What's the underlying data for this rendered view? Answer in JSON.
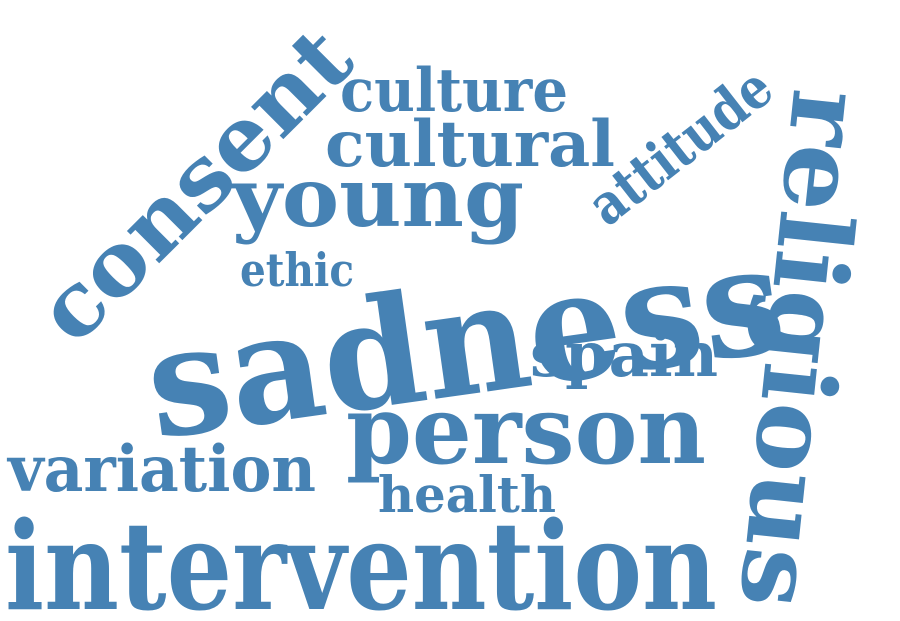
{
  "colors": {
    "word": "#4682b4",
    "background": "#ffffff"
  },
  "words": [
    {
      "id": "sadness",
      "text": "sadness"
    },
    {
      "id": "intervention",
      "text": "intervention"
    },
    {
      "id": "person",
      "text": "person"
    },
    {
      "id": "religious",
      "text": "religious"
    },
    {
      "id": "consent",
      "text": "consent"
    },
    {
      "id": "young",
      "text": "young"
    },
    {
      "id": "cultural",
      "text": "cultural"
    },
    {
      "id": "culture",
      "text": "culture"
    },
    {
      "id": "attitude",
      "text": "attitude"
    },
    {
      "id": "variation",
      "text": "variation"
    },
    {
      "id": "spain",
      "text": "spain"
    },
    {
      "id": "health",
      "text": "health"
    },
    {
      "id": "ethic",
      "text": "ethic"
    }
  ]
}
